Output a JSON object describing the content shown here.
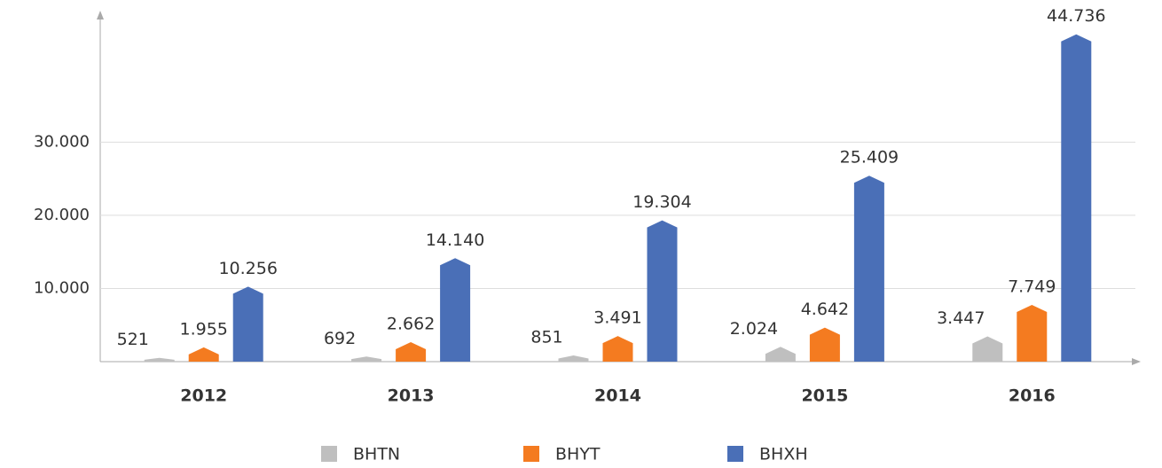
{
  "chart_data": {
    "type": "bar",
    "categories": [
      "2012",
      "2013",
      "2014",
      "2015",
      "2016"
    ],
    "series": [
      {
        "name": "BHTN",
        "color": "#bfbfbf",
        "values": [
          521,
          692,
          851,
          2024,
          3447
        ],
        "value_labels": [
          "521",
          "692",
          "851",
          "2.024",
          "3.447"
        ]
      },
      {
        "name": "BHYT",
        "color": "#f47b20",
        "values": [
          1955,
          2662,
          3491,
          4642,
          7749
        ],
        "value_labels": [
          "1.955",
          "2.662",
          "3.491",
          "4.642",
          "7.749"
        ]
      },
      {
        "name": "BHXH",
        "color": "#4a6fb7",
        "values": [
          10256,
          14140,
          19304,
          25409,
          44736
        ],
        "value_labels": [
          "10.256",
          "14.140",
          "19.304",
          "25.409",
          "44.736"
        ]
      }
    ],
    "ylim": [
      0,
      47000
    ],
    "yticks": [
      {
        "value": 10000,
        "label": "10.000"
      },
      {
        "value": 20000,
        "label": "20.000"
      },
      {
        "value": 30000,
        "label": "30.000"
      }
    ],
    "grid": true
  }
}
